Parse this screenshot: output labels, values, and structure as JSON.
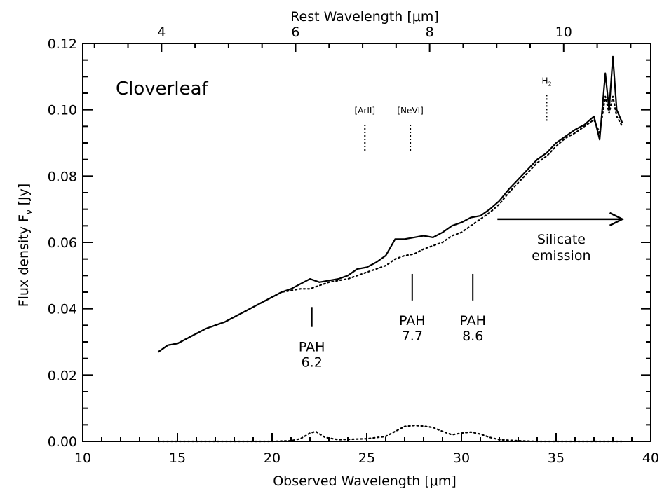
{
  "chart_data": {
    "type": "line",
    "panel_label": "Cloverleaf",
    "xlabel_bottom": "Observed Wavelength [μm]",
    "xlabel_top": "Rest Wavelength [μm]",
    "ylabel": "Flux density F",
    "ylabel_sub": "ν",
    "ylabel_unit": "[Jy]",
    "xlim": [
      10,
      40
    ],
    "ylim": [
      0.0,
      0.12
    ],
    "x_ticks_bottom": [
      10,
      15,
      20,
      25,
      30,
      35,
      40
    ],
    "x_tick_labels_bottom": [
      "10",
      "15",
      "20",
      "25",
      "30",
      "35",
      "40"
    ],
    "x_ticks_top_rest": [
      4,
      6,
      8,
      10
    ],
    "x_tick_labels_top": [
      "4",
      "6",
      "8",
      "10"
    ],
    "top_axis_scale_factor": 3.54,
    "y_ticks": [
      0.0,
      0.02,
      0.04,
      0.06,
      0.08,
      0.1,
      0.12
    ],
    "y_tick_labels": [
      "0.00",
      "0.02",
      "0.04",
      "0.06",
      "0.08",
      "0.10",
      "0.12"
    ],
    "grid": false,
    "series": [
      {
        "style": "solid",
        "x": [
          14.0,
          14.5,
          15.0,
          15.5,
          16.0,
          16.5,
          17.0,
          17.5,
          18.0,
          18.5,
          19.0,
          19.5,
          20.0,
          20.5,
          21.0,
          21.5,
          22.0,
          22.5,
          23.0,
          23.5,
          24.0,
          24.5,
          25.0,
          25.5,
          26.0,
          26.5,
          27.0,
          27.5,
          28.0,
          28.5,
          29.0,
          29.5,
          30.0,
          30.5,
          31.0,
          31.5,
          32.0,
          32.5,
          33.0,
          33.5,
          34.0,
          34.5,
          35.0,
          35.5,
          36.0,
          36.5,
          37.0,
          37.3,
          37.6,
          37.8,
          38.0,
          38.2,
          38.5
        ],
        "y": [
          0.027,
          0.029,
          0.0295,
          0.031,
          0.0325,
          0.034,
          0.035,
          0.036,
          0.0375,
          0.039,
          0.0405,
          0.042,
          0.0435,
          0.045,
          0.046,
          0.0475,
          0.049,
          0.048,
          0.0485,
          0.049,
          0.05,
          0.052,
          0.0525,
          0.054,
          0.056,
          0.061,
          0.061,
          0.0615,
          0.062,
          0.0615,
          0.063,
          0.065,
          0.066,
          0.0675,
          0.068,
          0.07,
          0.0725,
          0.076,
          0.079,
          0.082,
          0.085,
          0.087,
          0.09,
          0.092,
          0.094,
          0.0955,
          0.098,
          0.091,
          0.111,
          0.1,
          0.116,
          0.1,
          0.096
        ]
      },
      {
        "style": "dotted",
        "x": [
          14.0,
          14.5,
          15.0,
          15.5,
          16.0,
          16.5,
          17.0,
          17.5,
          18.0,
          18.5,
          19.0,
          19.5,
          20.0,
          20.5,
          21.0,
          21.5,
          22.0,
          22.5,
          23.0,
          23.5,
          24.0,
          24.5,
          25.0,
          25.5,
          26.0,
          26.5,
          27.0,
          27.5,
          28.0,
          28.5,
          29.0,
          29.5,
          30.0,
          30.5,
          31.0,
          31.5,
          32.0,
          32.5,
          33.0,
          33.5,
          34.0,
          34.5,
          35.0,
          35.5,
          36.0,
          36.5,
          37.0,
          37.3,
          37.6,
          37.8,
          38.0,
          38.2,
          38.5
        ],
        "y": [
          0.027,
          0.029,
          0.0295,
          0.031,
          0.0325,
          0.034,
          0.035,
          0.036,
          0.0375,
          0.039,
          0.0405,
          0.042,
          0.0435,
          0.045,
          0.0455,
          0.046,
          0.046,
          0.047,
          0.048,
          0.0485,
          0.049,
          0.05,
          0.051,
          0.052,
          0.053,
          0.055,
          0.056,
          0.0565,
          0.058,
          0.059,
          0.06,
          0.062,
          0.063,
          0.065,
          0.067,
          0.069,
          0.0715,
          0.075,
          0.078,
          0.081,
          0.084,
          0.086,
          0.089,
          0.0915,
          0.093,
          0.095,
          0.097,
          0.093,
          0.104,
          0.099,
          0.104,
          0.098,
          0.095
        ]
      },
      {
        "style": "dotted",
        "x": [
          14.0,
          16.0,
          18.0,
          20.0,
          21.0,
          21.5,
          22.0,
          22.3,
          22.8,
          23.5,
          25.0,
          26.0,
          26.5,
          27.0,
          27.5,
          28.0,
          28.5,
          29.0,
          29.5,
          30.0,
          30.5,
          31.0,
          31.5,
          32.0,
          33.0,
          34.0,
          36.0,
          38.5
        ],
        "y": [
          0.0,
          0.0,
          0.0,
          0.0,
          0.0002,
          0.0008,
          0.0025,
          0.003,
          0.0012,
          0.0005,
          0.0008,
          0.0015,
          0.003,
          0.0045,
          0.0048,
          0.0046,
          0.0042,
          0.003,
          0.002,
          0.0025,
          0.0028,
          0.0022,
          0.0012,
          0.0005,
          0.0002,
          0.0,
          0.0,
          0.0
        ]
      }
    ],
    "annotations": {
      "pah62": {
        "label_top": "PAH",
        "label_bottom": "6.2",
        "x": 22.1,
        "y_top": 0.0405,
        "y_bottom": 0.0345
      },
      "pah77": {
        "label_top": "PAH",
        "label_bottom": "7.7",
        "x": 27.4,
        "y_top": 0.0505,
        "y_bottom": 0.0425
      },
      "pah86": {
        "label_top": "PAH",
        "label_bottom": "8.6",
        "x": 30.6,
        "y_top": 0.0505,
        "y_bottom": 0.0425
      },
      "arII": {
        "label": "[ArII]",
        "x": 24.9,
        "y_top": 0.0955,
        "y_bottom": 0.0875
      },
      "nevi": {
        "label": "[NeVI]",
        "x": 27.3,
        "y_top": 0.0955,
        "y_bottom": 0.0875
      },
      "h2": {
        "label": "H",
        "sub": "2",
        "x": 34.5,
        "y_top": 0.1045,
        "y_bottom": 0.0965
      },
      "silicate": {
        "label_1": "Silicate",
        "label_2": "emission",
        "x_start": 31.9,
        "x_end": 38.5,
        "y": 0.067
      }
    }
  }
}
